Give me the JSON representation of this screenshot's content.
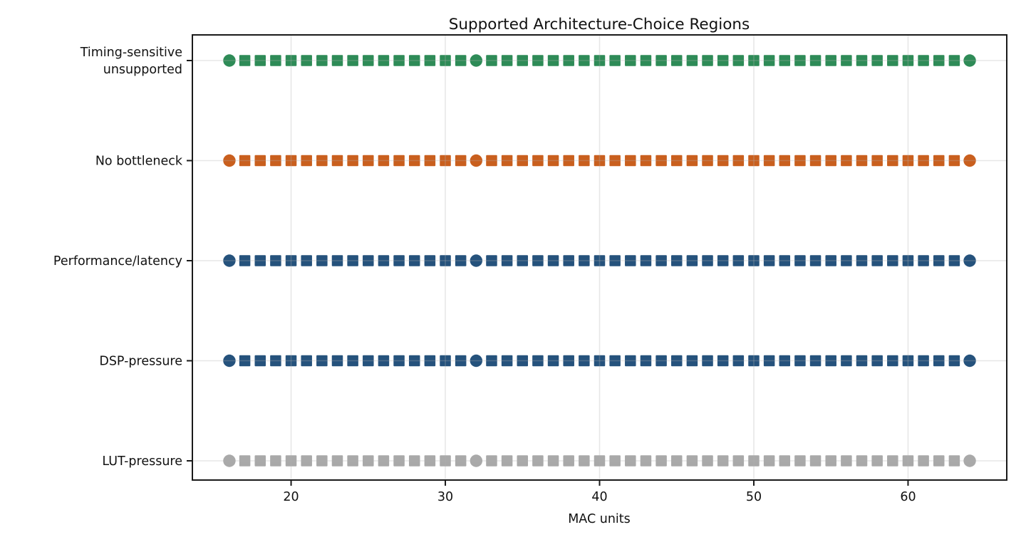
{
  "title": "Supported Architecture-Choice Regions",
  "chart_data": {
    "type": "scatter",
    "title": "Supported Architecture-Choice Regions",
    "xlabel": "MAC units",
    "ylabel": "",
    "xlim": [
      13.6,
      66.4
    ],
    "x_ticks": [
      20,
      30,
      40,
      50,
      60
    ],
    "x_values": [
      16,
      17,
      18,
      19,
      20,
      21,
      22,
      23,
      24,
      25,
      26,
      27,
      28,
      29,
      30,
      31,
      32,
      33,
      34,
      35,
      36,
      37,
      38,
      39,
      40,
      41,
      42,
      43,
      44,
      45,
      46,
      47,
      48,
      49,
      50,
      51,
      52,
      53,
      54,
      55,
      56,
      57,
      58,
      59,
      60,
      61,
      62,
      63,
      64
    ],
    "circle_marker_x": [
      16,
      32,
      64
    ],
    "square_marker_note": "square markers at every integer MAC value 16-64 except the circle positions",
    "grid": true,
    "legend_position": "none",
    "series": [
      {
        "name": "Timing-sensitive unsupported",
        "label_lines": [
          "Timing-sensitive",
          "unsupported"
        ],
        "color": "#2E8B57",
        "y_index": 4
      },
      {
        "name": "No bottleneck",
        "label_lines": [
          "No bottleneck"
        ],
        "color": "#C95F1E",
        "y_index": 3
      },
      {
        "name": "Performance/latency",
        "label_lines": [
          "Performance/latency"
        ],
        "color": "#25527C",
        "y_index": 2
      },
      {
        "name": "DSP-pressure",
        "label_lines": [
          "DSP-pressure"
        ],
        "color": "#25527C",
        "y_index": 1
      },
      {
        "name": "LUT-pressure",
        "label_lines": [
          "LUT-pressure"
        ],
        "color": "#A9A9A9",
        "y_index": 0
      }
    ],
    "style": {
      "grid_color": "#b0b0b0",
      "grid_opacity": 0.3,
      "axis_color": "#1a1a1a",
      "text_color": "#111111",
      "background_color": "#ffffff"
    }
  }
}
